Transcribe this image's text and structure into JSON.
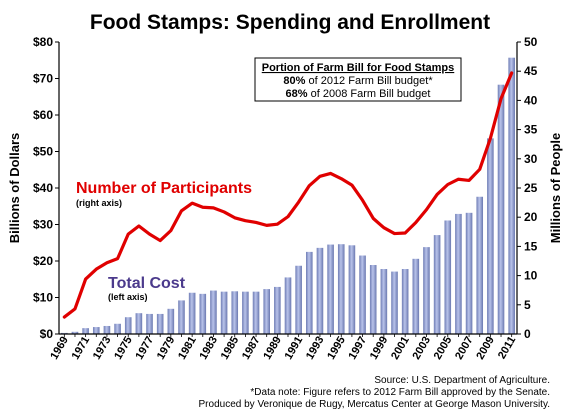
{
  "chart_data": {
    "type": "bar",
    "title": "Food Stamps: Spending and Enrollment",
    "ylabel": "Billions of Dollars",
    "y2label": "Millions of People",
    "ylim": [
      0,
      80
    ],
    "y2lim": [
      0,
      50
    ],
    "yticks": [
      "$0",
      "$10",
      "$20",
      "$30",
      "$40",
      "$50",
      "$60",
      "$70",
      "$80"
    ],
    "y2ticks": [
      "0",
      "5",
      "10",
      "15",
      "20",
      "25",
      "30",
      "35",
      "40",
      "45",
      "50"
    ],
    "x": [
      1969,
      1970,
      1971,
      1972,
      1973,
      1974,
      1975,
      1976,
      1977,
      1978,
      1979,
      1980,
      1981,
      1982,
      1983,
      1984,
      1985,
      1986,
      1987,
      1988,
      1989,
      1990,
      1991,
      1992,
      1993,
      1994,
      1995,
      1996,
      1997,
      1998,
      1999,
      2000,
      2001,
      2002,
      2003,
      2004,
      2005,
      2006,
      2007,
      2008,
      2009,
      2010,
      2011
    ],
    "xticklabels": [
      "1969",
      "1971",
      "1973",
      "1975",
      "1977",
      "1979",
      "1981",
      "1983",
      "1985",
      "1987",
      "1989",
      "1991",
      "1993",
      "1995",
      "1997",
      "1999",
      "2001",
      "2003",
      "2005",
      "2007",
      "2009",
      "2011"
    ],
    "series": [
      {
        "name": "Total Cost",
        "axis": "left",
        "type": "bar",
        "color": "#8a97c8",
        "values": [
          0.3,
          0.6,
          1.6,
          1.9,
          2.2,
          2.8,
          4.6,
          5.7,
          5.5,
          5.5,
          6.9,
          9.2,
          11.3,
          11.0,
          11.9,
          11.6,
          11.7,
          11.6,
          11.6,
          12.3,
          12.9,
          15.5,
          18.7,
          22.5,
          23.6,
          24.5,
          24.6,
          24.3,
          21.5,
          18.9,
          17.8,
          17.1,
          17.8,
          20.6,
          23.8,
          27.1,
          31.1,
          32.9,
          33.2,
          37.6,
          53.6,
          68.3,
          75.7
        ]
      },
      {
        "name": "Number of Participants",
        "axis": "right",
        "type": "line",
        "color": "#e00000",
        "values": [
          2.9,
          4.3,
          9.4,
          11.1,
          12.2,
          12.9,
          17.1,
          18.5,
          17.1,
          16.0,
          17.7,
          21.1,
          22.4,
          21.7,
          21.6,
          20.9,
          19.9,
          19.4,
          19.1,
          18.6,
          18.8,
          20.1,
          22.6,
          25.4,
          27.0,
          27.5,
          26.6,
          25.5,
          22.9,
          19.8,
          18.2,
          17.2,
          17.3,
          19.1,
          21.3,
          23.9,
          25.6,
          26.5,
          26.3,
          28.2,
          33.5,
          40.3,
          44.7
        ]
      }
    ],
    "annotations": {
      "participants_label": "Number of Participants",
      "participants_sub": "(right axis)",
      "cost_label": "Total Cost",
      "cost_sub": "(left axis)"
    },
    "box": {
      "title": "Portion of Farm Bill for Food Stamps",
      "line1_pct": "80%",
      "line1_text": " of 2012 Farm Bill budget*",
      "line2_pct": "68%",
      "line2_text": " of 2008 Farm Bill budget"
    },
    "grid": false,
    "source_lines": [
      "Source: U.S. Department of Agriculture.",
      "*Data note:  Figure refers to 2012 Farm Bill approved by the Senate.",
      "Produced by Veronique de Rugy, Mercatus Center at George Mason University."
    ]
  }
}
